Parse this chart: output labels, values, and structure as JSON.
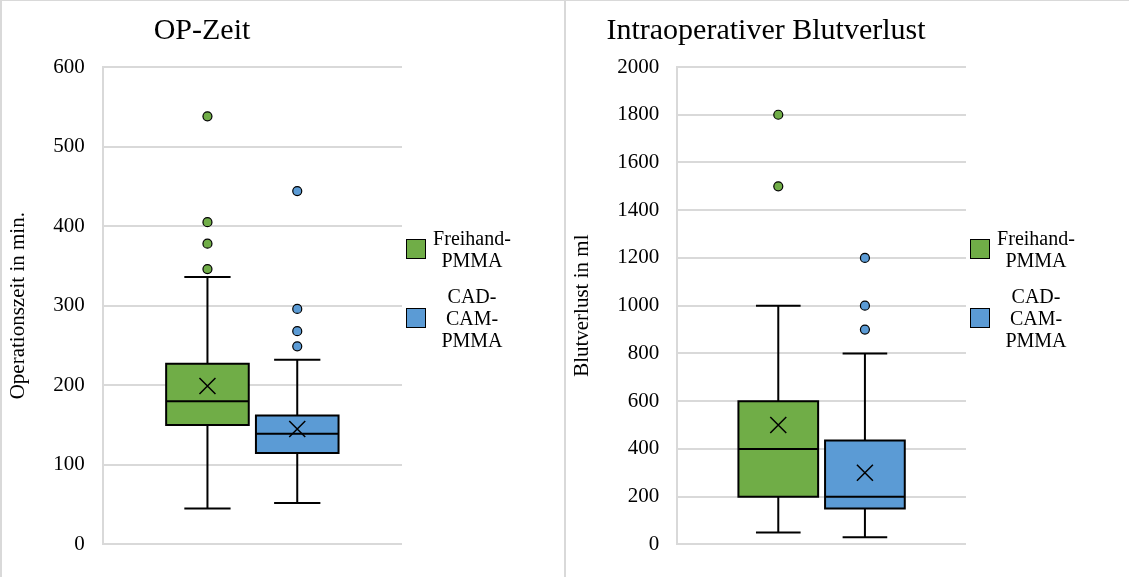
{
  "chart_data": [
    {
      "type": "box",
      "title": "OP-Zeit",
      "ylabel": "Operationszeit in min.",
      "categories": [
        null
      ],
      "ylim": [
        0,
        600
      ],
      "yticks": [
        0,
        100,
        200,
        300,
        400,
        500,
        600
      ],
      "grid": "y",
      "legend": "right",
      "marker": "circle",
      "series": [
        {
          "name": "Freihand-PMMA",
          "color": "#70ad47",
          "boxes": [
            {
              "low": 45,
              "q1": 150,
              "median": 180,
              "q3": 227,
              "high": 336,
              "mean": 199,
              "outliers": [
                346,
                378,
                405,
                538
              ]
            }
          ]
        },
        {
          "name": "CAD-CAM-PMMA",
          "color": "#5b9bd5",
          "boxes": [
            {
              "low": 52,
              "q1": 115,
              "median": 139,
              "q3": 162,
              "high": 232,
              "mean": 145,
              "outliers": [
                249,
                268,
                296,
                444
              ]
            }
          ]
        }
      ]
    },
    {
      "type": "box",
      "title": "Intraoperativer Blutverlust",
      "ylabel": "Blutverlust in ml",
      "categories": [
        null
      ],
      "ylim": [
        0,
        2000
      ],
      "yticks": [
        0,
        200,
        400,
        600,
        800,
        1000,
        1200,
        1400,
        1600,
        1800,
        2000
      ],
      "grid": "y",
      "legend": "right",
      "marker": "circle",
      "series": [
        {
          "name": "Freihand-PMMA",
          "color": "#70ad47",
          "boxes": [
            {
              "low": 50,
              "q1": 200,
              "median": 400,
              "q3": 600,
              "high": 1000,
              "mean": 500,
              "outliers": [
                1500,
                1800
              ]
            }
          ]
        },
        {
          "name": "CAD-CAM-PMMA",
          "color": "#5b9bd5",
          "boxes": [
            {
              "low": 30,
              "q1": 150,
              "median": 200,
              "q3": 435,
              "high": 800,
              "mean": 300,
              "outliers": [
                900,
                1000,
                1200
              ]
            }
          ]
        }
      ]
    }
  ]
}
